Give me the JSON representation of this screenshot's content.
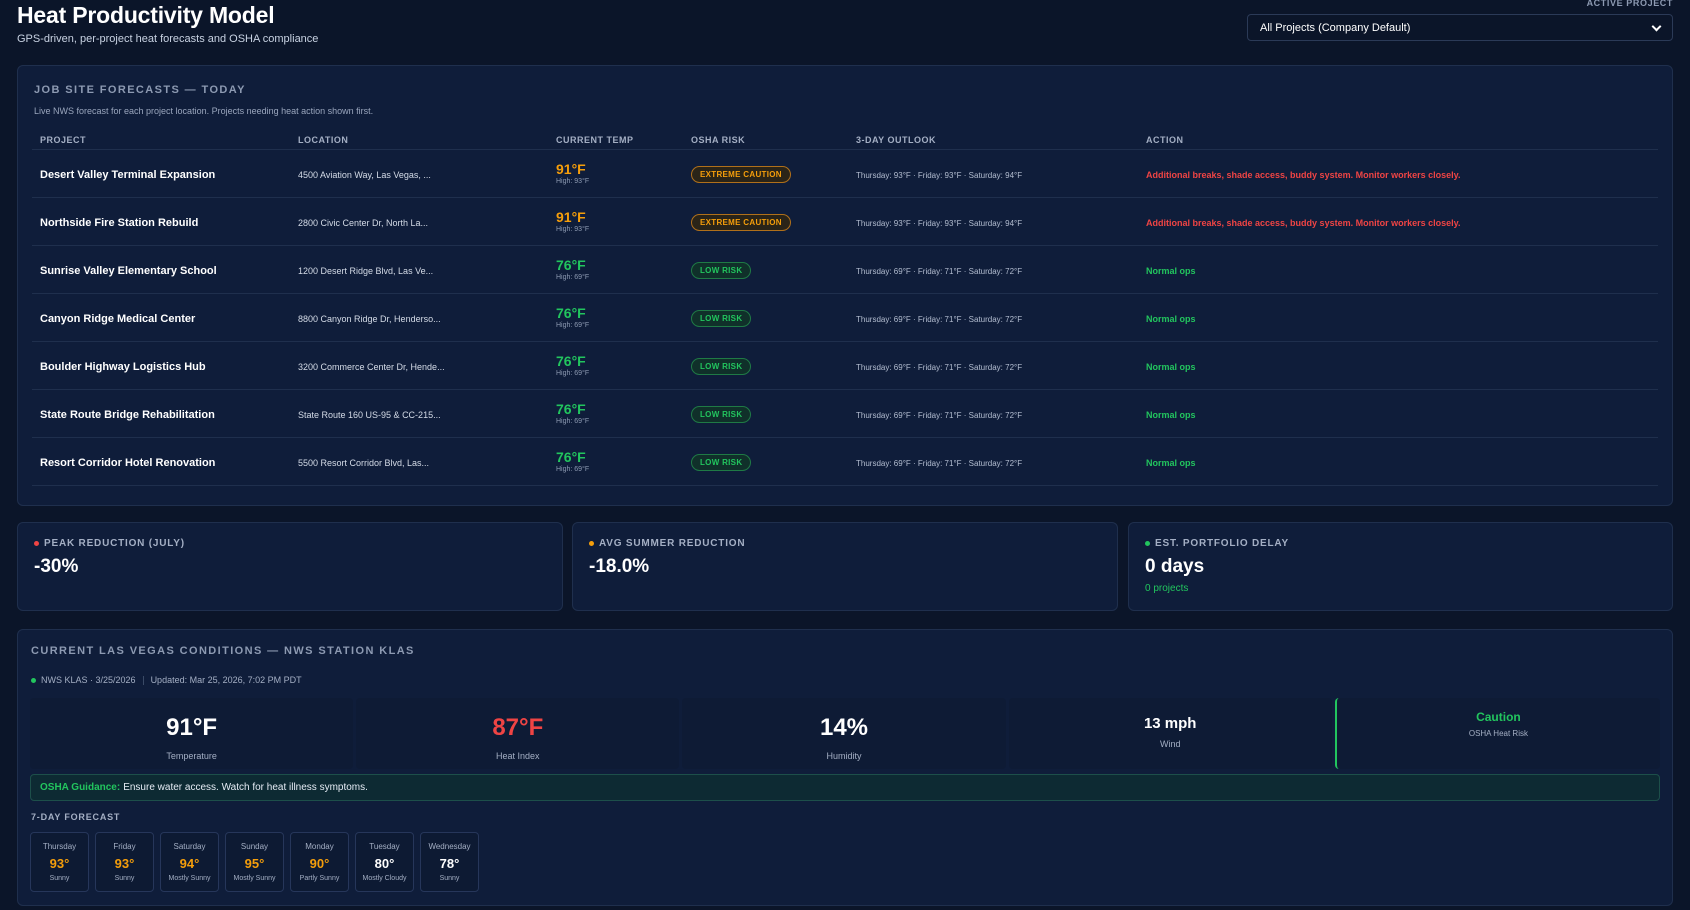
{
  "header": {
    "title": "Heat Productivity Model",
    "subtitle": "GPS-driven, per-project heat forecasts and OSHA compliance",
    "active_project_label": "ACTIVE PROJECT",
    "active_project_value": "All Projects (Company Default)"
  },
  "forecast": {
    "title": "JOB SITE FORECASTS — TODAY",
    "description": "Live NWS forecast for each project location. Projects needing heat action shown first.",
    "columns": [
      "PROJECT",
      "LOCATION",
      "CURRENT TEMP",
      "OSHA RISK",
      "3-DAY OUTLOOK",
      "ACTION"
    ],
    "rows": [
      {
        "project": "Desert Valley Terminal Expansion",
        "location": "4500 Aviation Way, Las Vegas, ...",
        "temp": "91°F",
        "high": "High: 93°F",
        "risk": "EXTREME CAUTION",
        "outlook": "Thursday: 93°F · Friday: 93°F · Saturday: 94°F",
        "action": "Additional breaks, shade access, buddy system. Monitor workers closely."
      },
      {
        "project": "Northside Fire Station Rebuild",
        "location": "2800 Civic Center Dr, North La...",
        "temp": "91°F",
        "high": "High: 93°F",
        "risk": "EXTREME CAUTION",
        "outlook": "Thursday: 93°F · Friday: 93°F · Saturday: 94°F",
        "action": "Additional breaks, shade access, buddy system. Monitor workers closely."
      },
      {
        "project": "Sunrise Valley Elementary School",
        "location": "1200 Desert Ridge Blvd, Las Ve...",
        "temp": "76°F",
        "high": "High: 69°F",
        "risk": "LOW RISK",
        "outlook": "Thursday: 69°F · Friday: 71°F · Saturday: 72°F",
        "action": "Normal ops"
      },
      {
        "project": "Canyon Ridge Medical Center",
        "location": "8800 Canyon Ridge Dr, Henderso...",
        "temp": "76°F",
        "high": "High: 69°F",
        "risk": "LOW RISK",
        "outlook": "Thursday: 69°F · Friday: 71°F · Saturday: 72°F",
        "action": "Normal ops"
      },
      {
        "project": "Boulder Highway Logistics Hub",
        "location": "3200 Commerce Center Dr, Hende...",
        "temp": "76°F",
        "high": "High: 69°F",
        "risk": "LOW RISK",
        "outlook": "Thursday: 69°F · Friday: 71°F · Saturday: 72°F",
        "action": "Normal ops"
      },
      {
        "project": "State Route Bridge Rehabilitation",
        "location": "State Route 160 US-95 & CC-215...",
        "temp": "76°F",
        "high": "High: 69°F",
        "risk": "LOW RISK",
        "outlook": "Thursday: 69°F · Friday: 71°F · Saturday: 72°F",
        "action": "Normal ops"
      },
      {
        "project": "Resort Corridor Hotel Renovation",
        "location": "5500 Resort Corridor Blvd, Las...",
        "temp": "76°F",
        "high": "High: 69°F",
        "risk": "LOW RISK",
        "outlook": "Thursday: 69°F · Friday: 71°F · Saturday: 72°F",
        "action": "Normal ops"
      }
    ]
  },
  "stats": {
    "peak": {
      "label": "PEAK REDUCTION (JULY)",
      "value": "-30%",
      "dot_color": "#ef4444"
    },
    "avg": {
      "label": "AVG SUMMER REDUCTION",
      "value": "-18.0%",
      "dot_color": "#f59e0b"
    },
    "delay": {
      "label": "EST. PORTFOLIO DELAY",
      "value": "0 days",
      "sub": "0 projects",
      "dot_color": "#22c55e"
    }
  },
  "conditions": {
    "title": "CURRENT LAS VEGAS CONDITIONS — NWS STATION KLAS",
    "station": "NWS KLAS · 3/25/2026",
    "updated": "Updated: Mar 25, 2026, 7:02 PM PDT",
    "temperature": {
      "value": "91°F",
      "label": "Temperature"
    },
    "heat_index": {
      "value": "87°F",
      "label": "Heat Index"
    },
    "humidity": {
      "value": "14%",
      "label": "Humidity"
    },
    "wind": {
      "value": "13 mph",
      "label": "Wind"
    },
    "osha_risk": {
      "value": "Caution",
      "label": "OSHA Heat Risk"
    },
    "guidance_label": "OSHA Guidance:",
    "guidance_text": "Ensure water access. Watch for heat illness symptoms.",
    "week_title": "7-DAY FORECAST",
    "days": [
      {
        "name": "Thursday",
        "temp": "93°",
        "cond": "Sunny"
      },
      {
        "name": "Friday",
        "temp": "93°",
        "cond": "Sunny"
      },
      {
        "name": "Saturday",
        "temp": "94°",
        "cond": "Mostly Sunny"
      },
      {
        "name": "Sunday",
        "temp": "95°",
        "cond": "Mostly Sunny"
      },
      {
        "name": "Monday",
        "temp": "90°",
        "cond": "Partly Sunny"
      },
      {
        "name": "Tuesday",
        "temp": "80°",
        "cond": "Mostly Cloudy"
      },
      {
        "name": "Wednesday",
        "temp": "78°",
        "cond": "Sunny"
      }
    ]
  },
  "colors": {
    "hot": "#f59e0b",
    "ok": "#22c55e",
    "danger": "#ef4444",
    "bg": "#0b1529",
    "panel": "#0f1d3a"
  }
}
